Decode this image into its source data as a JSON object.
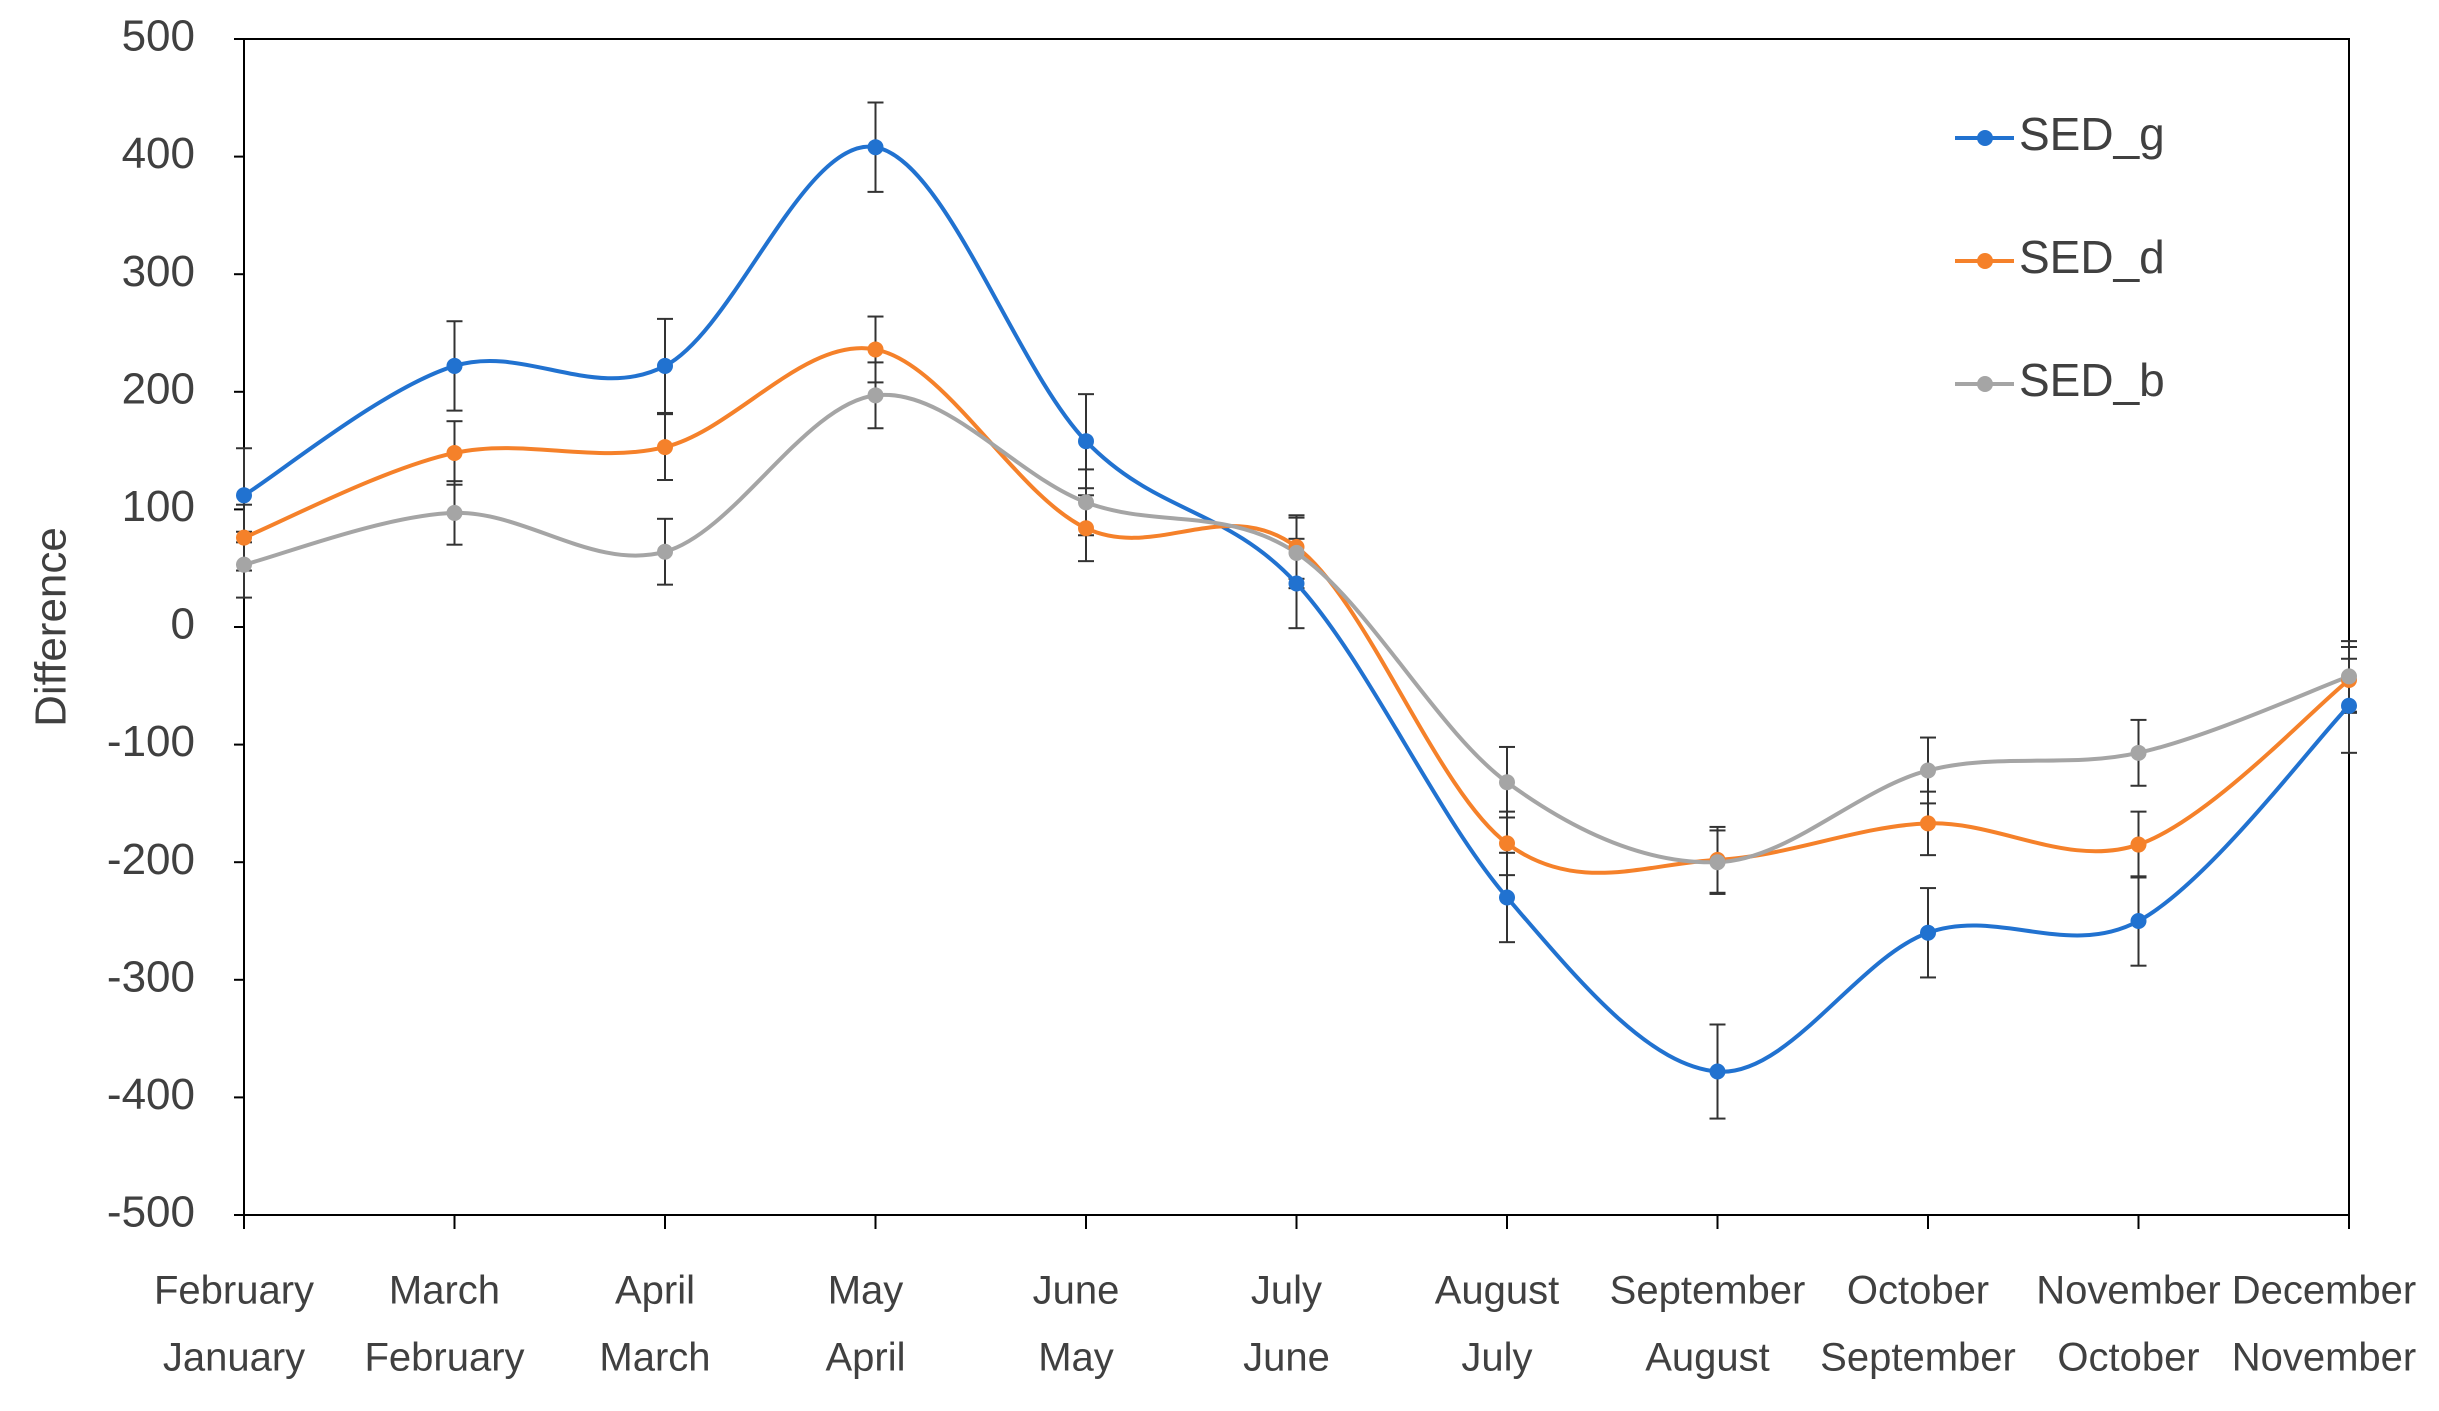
{
  "chart_data": {
    "type": "line",
    "y_label": "Difference",
    "categories": [
      [
        "February",
        "January"
      ],
      [
        "March",
        "February"
      ],
      [
        "April",
        "March"
      ],
      [
        "May",
        "April"
      ],
      [
        "June",
        "May"
      ],
      [
        "July",
        "June"
      ],
      [
        "August",
        "July"
      ],
      [
        "September",
        "August"
      ],
      [
        "October",
        "September"
      ],
      [
        "November",
        "October"
      ],
      [
        "December",
        "November"
      ]
    ],
    "series": [
      {
        "name": "SED_g",
        "color": "#2172d0",
        "values": [
          112,
          222,
          222,
          408,
          158,
          37,
          -230,
          -378,
          -260,
          -250,
          -67
        ],
        "errors": [
          40,
          38,
          40,
          38,
          40,
          38,
          38,
          40,
          38,
          38,
          40
        ]
      },
      {
        "name": "SED_d",
        "color": "#f5812a",
        "values": [
          76,
          148,
          153,
          236,
          84,
          68,
          -184,
          -198,
          -167,
          -185,
          -45
        ],
        "errors": [
          28,
          27,
          28,
          28,
          28,
          27,
          27,
          28,
          27,
          28,
          28
        ]
      },
      {
        "name": "SED_b",
        "color": "#a5a5a5",
        "values": [
          53,
          97,
          64,
          197,
          106,
          63,
          -132,
          -200,
          -122,
          -107,
          -42
        ],
        "errors": [
          28,
          27,
          28,
          28,
          28,
          30,
          30,
          27,
          28,
          28,
          30
        ]
      }
    ],
    "ylim": [
      -500,
      500
    ],
    "yticks": [
      -500,
      -400,
      -300,
      -200,
      -100,
      0,
      100,
      200,
      300,
      400,
      500
    ],
    "smooth": true,
    "legend": "upper right"
  }
}
